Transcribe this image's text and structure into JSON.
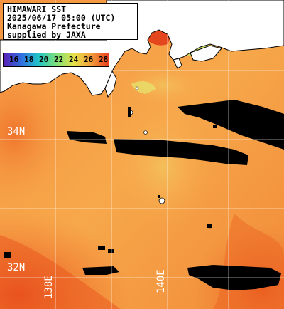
{
  "info": {
    "title": "HIMAWARI SST",
    "datetime": "2025/06/17 05:00 (UTC)",
    "region": "Kanagawa Prefecture",
    "credit": "supplied by JAXA"
  },
  "legend": {
    "labels": [
      "16",
      "18",
      "20",
      "22",
      "24",
      "26",
      "28"
    ],
    "colors": [
      "#5a1fb4",
      "#2f6fe0",
      "#22c3c8",
      "#7be07b",
      "#e6e048",
      "#f3a03c",
      "#e8401e"
    ]
  },
  "grid": {
    "lat_labels": [
      "34N",
      "32N"
    ],
    "lon_labels": [
      "138E",
      "140E"
    ]
  },
  "colors": {
    "sea_main": "#f7a84b",
    "sea_warm": "#ef7a2e",
    "sea_hot": "#e9561f",
    "sea_cool": "#f2c566",
    "land": "#ffffff",
    "cloud": "#000000",
    "grid": "#ffffff"
  }
}
